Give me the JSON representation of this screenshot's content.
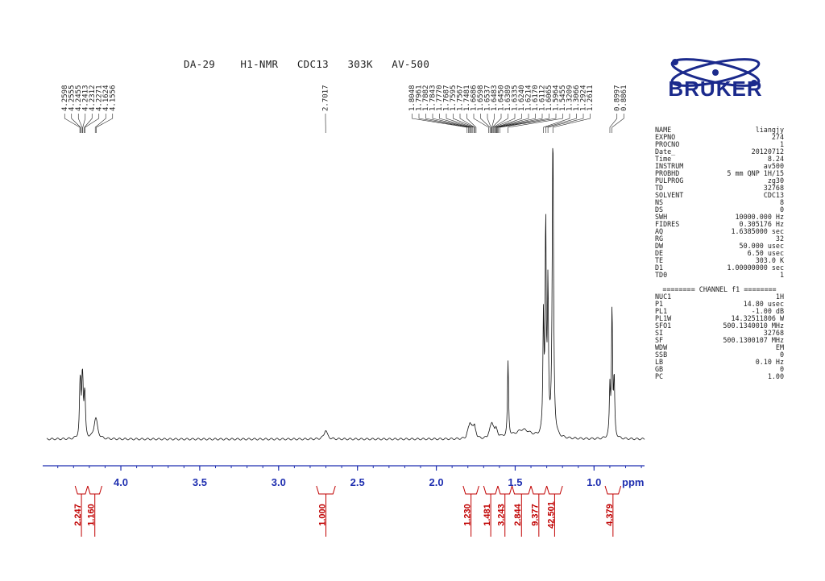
{
  "title": "DA-29    H1-NMR   CDC13   303K   AV-500",
  "logo": {
    "text": "BRUKER",
    "icon": "atom-orbit-logo"
  },
  "colors": {
    "axis": "#1f2fb0",
    "integral": "#c00000",
    "trace": "#111111",
    "logo_blue": "#1b2a8c"
  },
  "params": {
    "block1": [
      {
        "k": "NAME",
        "v": "liangjy"
      },
      {
        "k": "EXPNO",
        "v": "274"
      },
      {
        "k": "PROCNO",
        "v": "1"
      },
      {
        "k": "Date_",
        "v": "20120712"
      },
      {
        "k": "Time",
        "v": "8.24"
      },
      {
        "k": "INSTRUM",
        "v": "av500"
      },
      {
        "k": "PROBHD",
        "v": "5 mm QNP 1H/15"
      },
      {
        "k": "PULPROG",
        "v": "zg30"
      },
      {
        "k": "TD",
        "v": "32768"
      },
      {
        "k": "SOLVENT",
        "v": "CDC13"
      },
      {
        "k": "NS",
        "v": "8"
      },
      {
        "k": "DS",
        "v": "0"
      },
      {
        "k": "SWH",
        "v": "10000.000 Hz"
      },
      {
        "k": "FIDRES",
        "v": "0.305176 Hz"
      },
      {
        "k": "AQ",
        "v": "1.6385000 sec"
      },
      {
        "k": "RG",
        "v": "32"
      },
      {
        "k": "DW",
        "v": "50.000 usec"
      },
      {
        "k": "DE",
        "v": "6.50 usec"
      },
      {
        "k": "TE",
        "v": "303.0 K"
      },
      {
        "k": "D1",
        "v": "1.00000000 sec"
      },
      {
        "k": "TD0",
        "v": "1"
      }
    ],
    "channel_header": "======== CHANNEL f1 ========",
    "block2": [
      {
        "k": "NUC1",
        "v": "1H"
      },
      {
        "k": "P1",
        "v": "14.80 usec"
      },
      {
        "k": "PL1",
        "v": "-1.00 dB"
      },
      {
        "k": "PL1W",
        "v": "14.32511806 W"
      },
      {
        "k": "SFO1",
        "v": "500.1340010 MHz"
      },
      {
        "k": "SI",
        "v": "32768"
      },
      {
        "k": "SF",
        "v": "500.1300107 MHz"
      },
      {
        "k": "WDW",
        "v": "EM"
      },
      {
        "k": "SSB",
        "v": "0"
      },
      {
        "k": "LB",
        "v": "0.10 Hz"
      },
      {
        "k": "GB",
        "v": "0"
      },
      {
        "k": "PC",
        "v": "1.00"
      }
    ]
  },
  "chart_data": {
    "type": "line",
    "xlabel": "ppm",
    "xlim": [
      4.47,
      0.68
    ],
    "x_reversed": true,
    "xticks": [
      {
        "value": 4.0,
        "label": "4.0"
      },
      {
        "value": 3.5,
        "label": "3.5"
      },
      {
        "value": 3.0,
        "label": "3.0"
      },
      {
        "value": 2.5,
        "label": "2.5"
      },
      {
        "value": 2.0,
        "label": "2.0"
      },
      {
        "value": 1.5,
        "label": "1.5"
      },
      {
        "value": 1.0,
        "label": "1.0"
      }
    ],
    "minor_tick_step": 0.1,
    "peaks": [
      {
        "ppm": 4.2598,
        "h": 0.12,
        "w": 0.004
      },
      {
        "ppm": 4.2555,
        "h": 0.12,
        "w": 0.004
      },
      {
        "ppm": 4.2455,
        "h": 0.13,
        "w": 0.004
      },
      {
        "ppm": 4.2413,
        "h": 0.13,
        "w": 0.004
      },
      {
        "ppm": 4.2312,
        "h": 0.09,
        "w": 0.004
      },
      {
        "ppm": 4.2271,
        "h": 0.09,
        "w": 0.004
      },
      {
        "ppm": 4.1624,
        "h": 0.04,
        "w": 0.012
      },
      {
        "ppm": 4.1556,
        "h": 0.035,
        "w": 0.012
      },
      {
        "ppm": 2.7017,
        "h": 0.03,
        "w": 0.012
      },
      {
        "ppm": 1.8048,
        "h": 0.01,
        "w": 0.006
      },
      {
        "ppm": 1.7961,
        "h": 0.018,
        "w": 0.006
      },
      {
        "ppm": 1.7882,
        "h": 0.022,
        "w": 0.006
      },
      {
        "ppm": 1.7843,
        "h": 0.02,
        "w": 0.006
      },
      {
        "ppm": 1.777,
        "h": 0.025,
        "w": 0.006
      },
      {
        "ppm": 1.7687,
        "h": 0.02,
        "w": 0.006
      },
      {
        "ppm": 1.7595,
        "h": 0.018,
        "w": 0.006
      },
      {
        "ppm": 1.7567,
        "h": 0.018,
        "w": 0.006
      },
      {
        "ppm": 1.7481,
        "h": 0.012,
        "w": 0.006
      },
      {
        "ppm": 1.6686,
        "h": 0.01,
        "w": 0.006
      },
      {
        "ppm": 1.6598,
        "h": 0.015,
        "w": 0.006
      },
      {
        "ppm": 1.6537,
        "h": 0.015,
        "w": 0.006
      },
      {
        "ppm": 1.6483,
        "h": 0.018,
        "w": 0.006
      },
      {
        "ppm": 1.645,
        "h": 0.016,
        "w": 0.006
      },
      {
        "ppm": 1.6389,
        "h": 0.016,
        "w": 0.006
      },
      {
        "ppm": 1.6335,
        "h": 0.014,
        "w": 0.006
      },
      {
        "ppm": 1.624,
        "h": 0.012,
        "w": 0.006
      },
      {
        "ppm": 1.6214,
        "h": 0.01,
        "w": 0.006
      },
      {
        "ppm": 1.617,
        "h": 0.008,
        "w": 0.006
      },
      {
        "ppm": 1.6112,
        "h": 0.006,
        "w": 0.006
      },
      {
        "ppm": 1.5964,
        "h": 0.006,
        "w": 0.006
      },
      {
        "ppm": 1.5455,
        "h": 0.25,
        "w": 0.004
      },
      {
        "ppm": 1.45,
        "h": 0.03,
        "w": 0.06
      },
      {
        "ppm": 1.3209,
        "h": 0.38,
        "w": 0.004
      },
      {
        "ppm": 1.3066,
        "h": 0.7,
        "w": 0.004
      },
      {
        "ppm": 1.2924,
        "h": 0.48,
        "w": 0.004
      },
      {
        "ppm": 1.2611,
        "h": 1.0,
        "w": 0.005
      },
      {
        "ppm": 0.8997,
        "h": 0.16,
        "w": 0.004
      },
      {
        "ppm": 0.8861,
        "h": 0.43,
        "w": 0.004
      },
      {
        "ppm": 0.8725,
        "h": 0.19,
        "w": 0.004
      }
    ],
    "peak_label_groups": [
      {
        "labels": [
          "4.2598",
          "4.2555",
          "4.2455",
          "4.2413",
          "4.2312",
          "4.2271",
          "4.1624",
          "4.1556"
        ],
        "ppm": [
          4.2598,
          4.2555,
          4.2455,
          4.2413,
          4.2312,
          4.2271,
          4.1624,
          4.1556
        ]
      },
      {
        "labels": [
          "2.7017"
        ],
        "ppm": [
          2.7017
        ]
      },
      {
        "labels": [
          "1.8048",
          "1.7961",
          "1.7882",
          "1.7843",
          "1.7770",
          "1.7687",
          "1.7595",
          "1.7567",
          "1.7481",
          "1.6686",
          "1.6598",
          "1.6537",
          "1.6483",
          "1.6450",
          "1.6389",
          "1.6335",
          "1.6240",
          "1.6214",
          "1.6170",
          "1.6112",
          "1.6065",
          "1.5964",
          "1.5455",
          "1.3209",
          "1.3066",
          "1.2924",
          "1.2611"
        ],
        "ppm": [
          1.8048,
          1.7961,
          1.7882,
          1.7843,
          1.777,
          1.7687,
          1.7595,
          1.7567,
          1.7481,
          1.6686,
          1.6598,
          1.6537,
          1.6483,
          1.645,
          1.6389,
          1.6335,
          1.624,
          1.6214,
          1.617,
          1.6112,
          1.6065,
          1.5964,
          1.5455,
          1.3209,
          1.3066,
          1.2924,
          1.2611
        ]
      },
      {
        "labels": [
          "0.8997",
          "0.8861"
        ],
        "ppm": [
          0.8997,
          0.8861
        ]
      }
    ],
    "integrals": [
      {
        "label": "2.247",
        "ppm": [
          4.29,
          4.21
        ]
      },
      {
        "label": "1.160",
        "ppm": [
          4.21,
          4.12
        ]
      },
      {
        "label": "1.000",
        "ppm": [
          2.76,
          2.64
        ]
      },
      {
        "label": "1.230",
        "ppm": [
          1.83,
          1.73
        ]
      },
      {
        "label": "1.481",
        "ppm": [
          1.7,
          1.61
        ]
      },
      {
        "label": "3.243",
        "ppm": [
          1.61,
          1.52
        ]
      },
      {
        "label": "2.844",
        "ppm": [
          1.52,
          1.4
        ]
      },
      {
        "label": "9.377",
        "ppm": [
          1.4,
          1.3
        ]
      },
      {
        "label": "42.501",
        "ppm": [
          1.3,
          1.2
        ]
      },
      {
        "label": "4.379",
        "ppm": [
          0.93,
          0.83
        ]
      }
    ]
  }
}
